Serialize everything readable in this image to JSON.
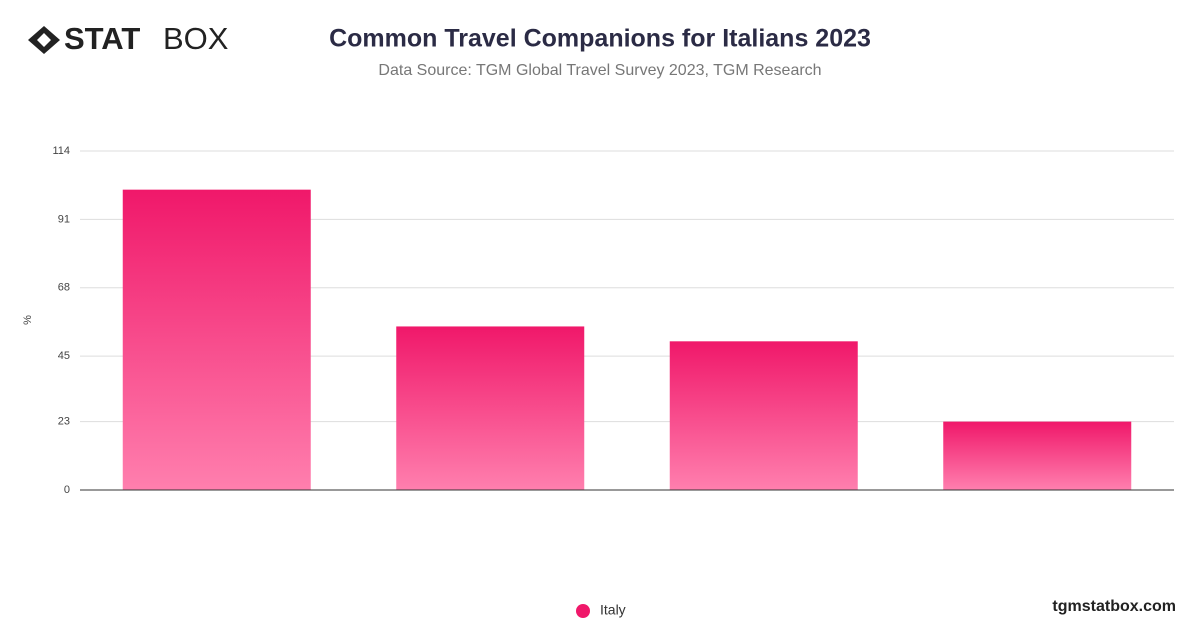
{
  "logo": {
    "bold": "STAT",
    "light": "BOX"
  },
  "footer": "tgmstatbox.com",
  "chart_data": {
    "type": "bar",
    "title": "Common Travel Companions for Italians 2023",
    "subtitle": "Data Source: TGM Global Travel Survey 2023, TGM Research",
    "y_label": "%",
    "categories": [
      null,
      null,
      null,
      null
    ],
    "series": [
      {
        "name": "Italy",
        "color": "#f0186a",
        "values": [
          101,
          55,
          50,
          23
        ]
      }
    ],
    "ylim": [
      0,
      114
    ],
    "yticks": [
      0,
      23,
      45,
      68,
      91,
      114
    ],
    "grid": true,
    "legend": "bottom"
  }
}
